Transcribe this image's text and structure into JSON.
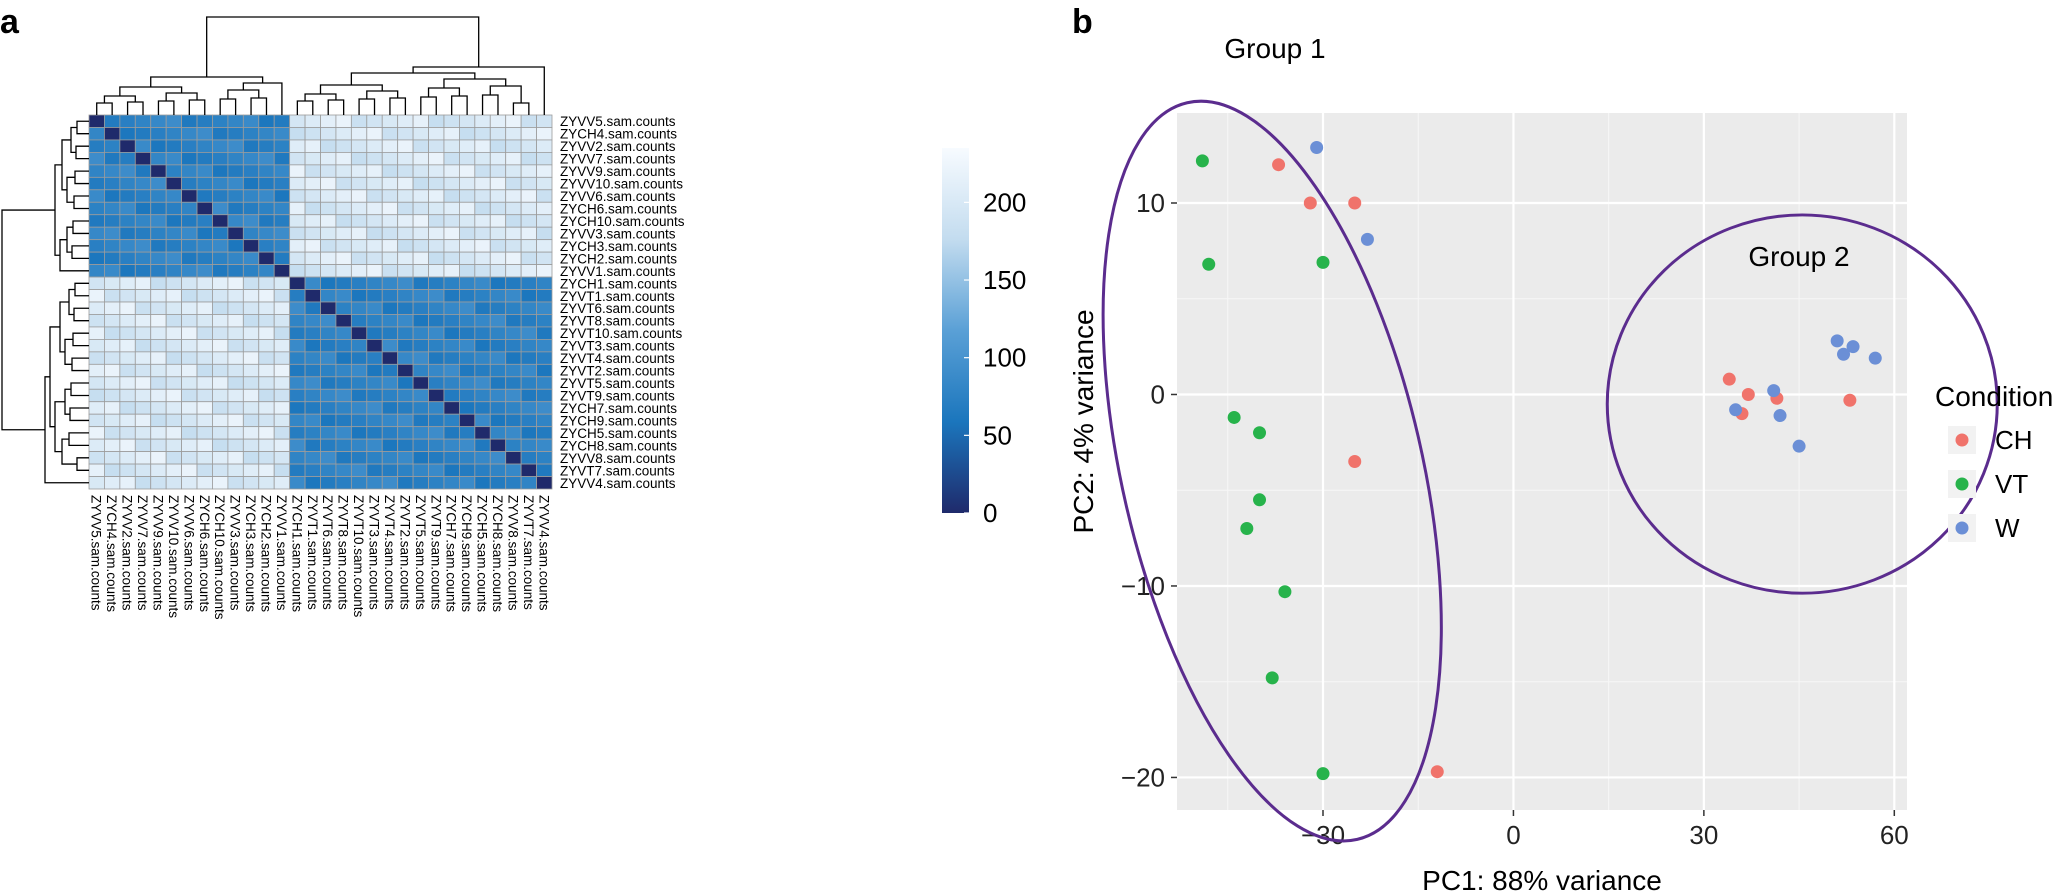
{
  "panels": {
    "a": "a",
    "b": "b"
  },
  "chart_data": [
    {
      "type": "heatmap",
      "title": "",
      "samples_in_order": [
        "ZYVV5.sam.counts",
        "ZYCH4.sam.counts",
        "ZYVV2.sam.counts",
        "ZYVV7.sam.counts",
        "ZYVV9.sam.counts",
        "ZYVV10.sam.counts",
        "ZYVV6.sam.counts",
        "ZYCH6.sam.counts",
        "ZYCH10.sam.counts",
        "ZYVV3.sam.counts",
        "ZYCH3.sam.counts",
        "ZYCH2.sam.counts",
        "ZYVV1.sam.counts",
        "ZYCH1.sam.counts",
        "ZYVT1.sam.counts",
        "ZYVT6.sam.counts",
        "ZYVT8.sam.counts",
        "ZYVT10.sam.counts",
        "ZYVT3.sam.counts",
        "ZYVT4.sam.counts",
        "ZYVT2.sam.counts",
        "ZYVT5.sam.counts",
        "ZYVT9.sam.counts",
        "ZYCH7.sam.counts",
        "ZYCH9.sam.counts",
        "ZYCH5.sam.counts",
        "ZYCH8.sam.counts",
        "ZYVV8.sam.counts",
        "ZYVT7.sam.counts",
        "ZYVV4.sam.counts"
      ],
      "group1_size": 13,
      "value_description": "sample distance: 0 on diagonal, ~60-90 within cluster, ~170-230 between clusters",
      "within_cluster_distance": 75,
      "between_cluster_distance": 200,
      "colorbar": {
        "min": 0,
        "max": 235,
        "ticks": [
          0,
          50,
          100,
          150,
          200
        ],
        "colors": [
          "#1f2a6b",
          "#1b76bd",
          "#5aa0d6",
          "#c3dcef",
          "#f7fbff"
        ]
      }
    },
    {
      "type": "scatter",
      "title": "",
      "xlabel": "PC1: 88% variance",
      "ylabel": "PC2: 4% variance",
      "xlim": [
        -53,
        62
      ],
      "ylim": [
        -21.7,
        14.7
      ],
      "xticks": [
        -30,
        0,
        30,
        60
      ],
      "yticks": [
        10,
        0,
        -10,
        -20
      ],
      "legend": {
        "title": "Condition",
        "placement": "right"
      },
      "series": [
        {
          "name": "CH",
          "color": "#f0736b",
          "points": [
            [
              -37,
              12
            ],
            [
              -32,
              10
            ],
            [
              -25,
              10
            ],
            [
              -25,
              -3.5
            ],
            [
              -12,
              -19.7
            ],
            [
              34,
              0.8
            ],
            [
              37,
              0
            ],
            [
              36,
              -1
            ],
            [
              41.5,
              -0.2
            ],
            [
              53,
              -0.3
            ]
          ]
        },
        {
          "name": "VT",
          "color": "#27b34b",
          "points": [
            [
              -49,
              12.2
            ],
            [
              -48,
              6.8
            ],
            [
              -30,
              6.9
            ],
            [
              -44,
              -1.2
            ],
            [
              -40,
              -2
            ],
            [
              -40,
              -5.5
            ],
            [
              -42,
              -7
            ],
            [
              -36,
              -10.3
            ],
            [
              -38,
              -14.8
            ],
            [
              -30,
              -19.8
            ]
          ]
        },
        {
          "name": "W",
          "color": "#6b8fd6",
          "points": [
            [
              -31,
              12.9
            ],
            [
              -23,
              8.1
            ],
            [
              35,
              -0.8
            ],
            [
              41,
              0.2
            ],
            [
              42,
              -1.1
            ],
            [
              45,
              -2.7
            ],
            [
              51,
              2.8
            ],
            [
              52,
              2.1
            ],
            [
              53.5,
              2.5
            ],
            [
              57,
              1.9
            ]
          ]
        }
      ],
      "annotations": [
        {
          "label": "Group 1"
        },
        {
          "label": "Group 2"
        }
      ]
    }
  ]
}
